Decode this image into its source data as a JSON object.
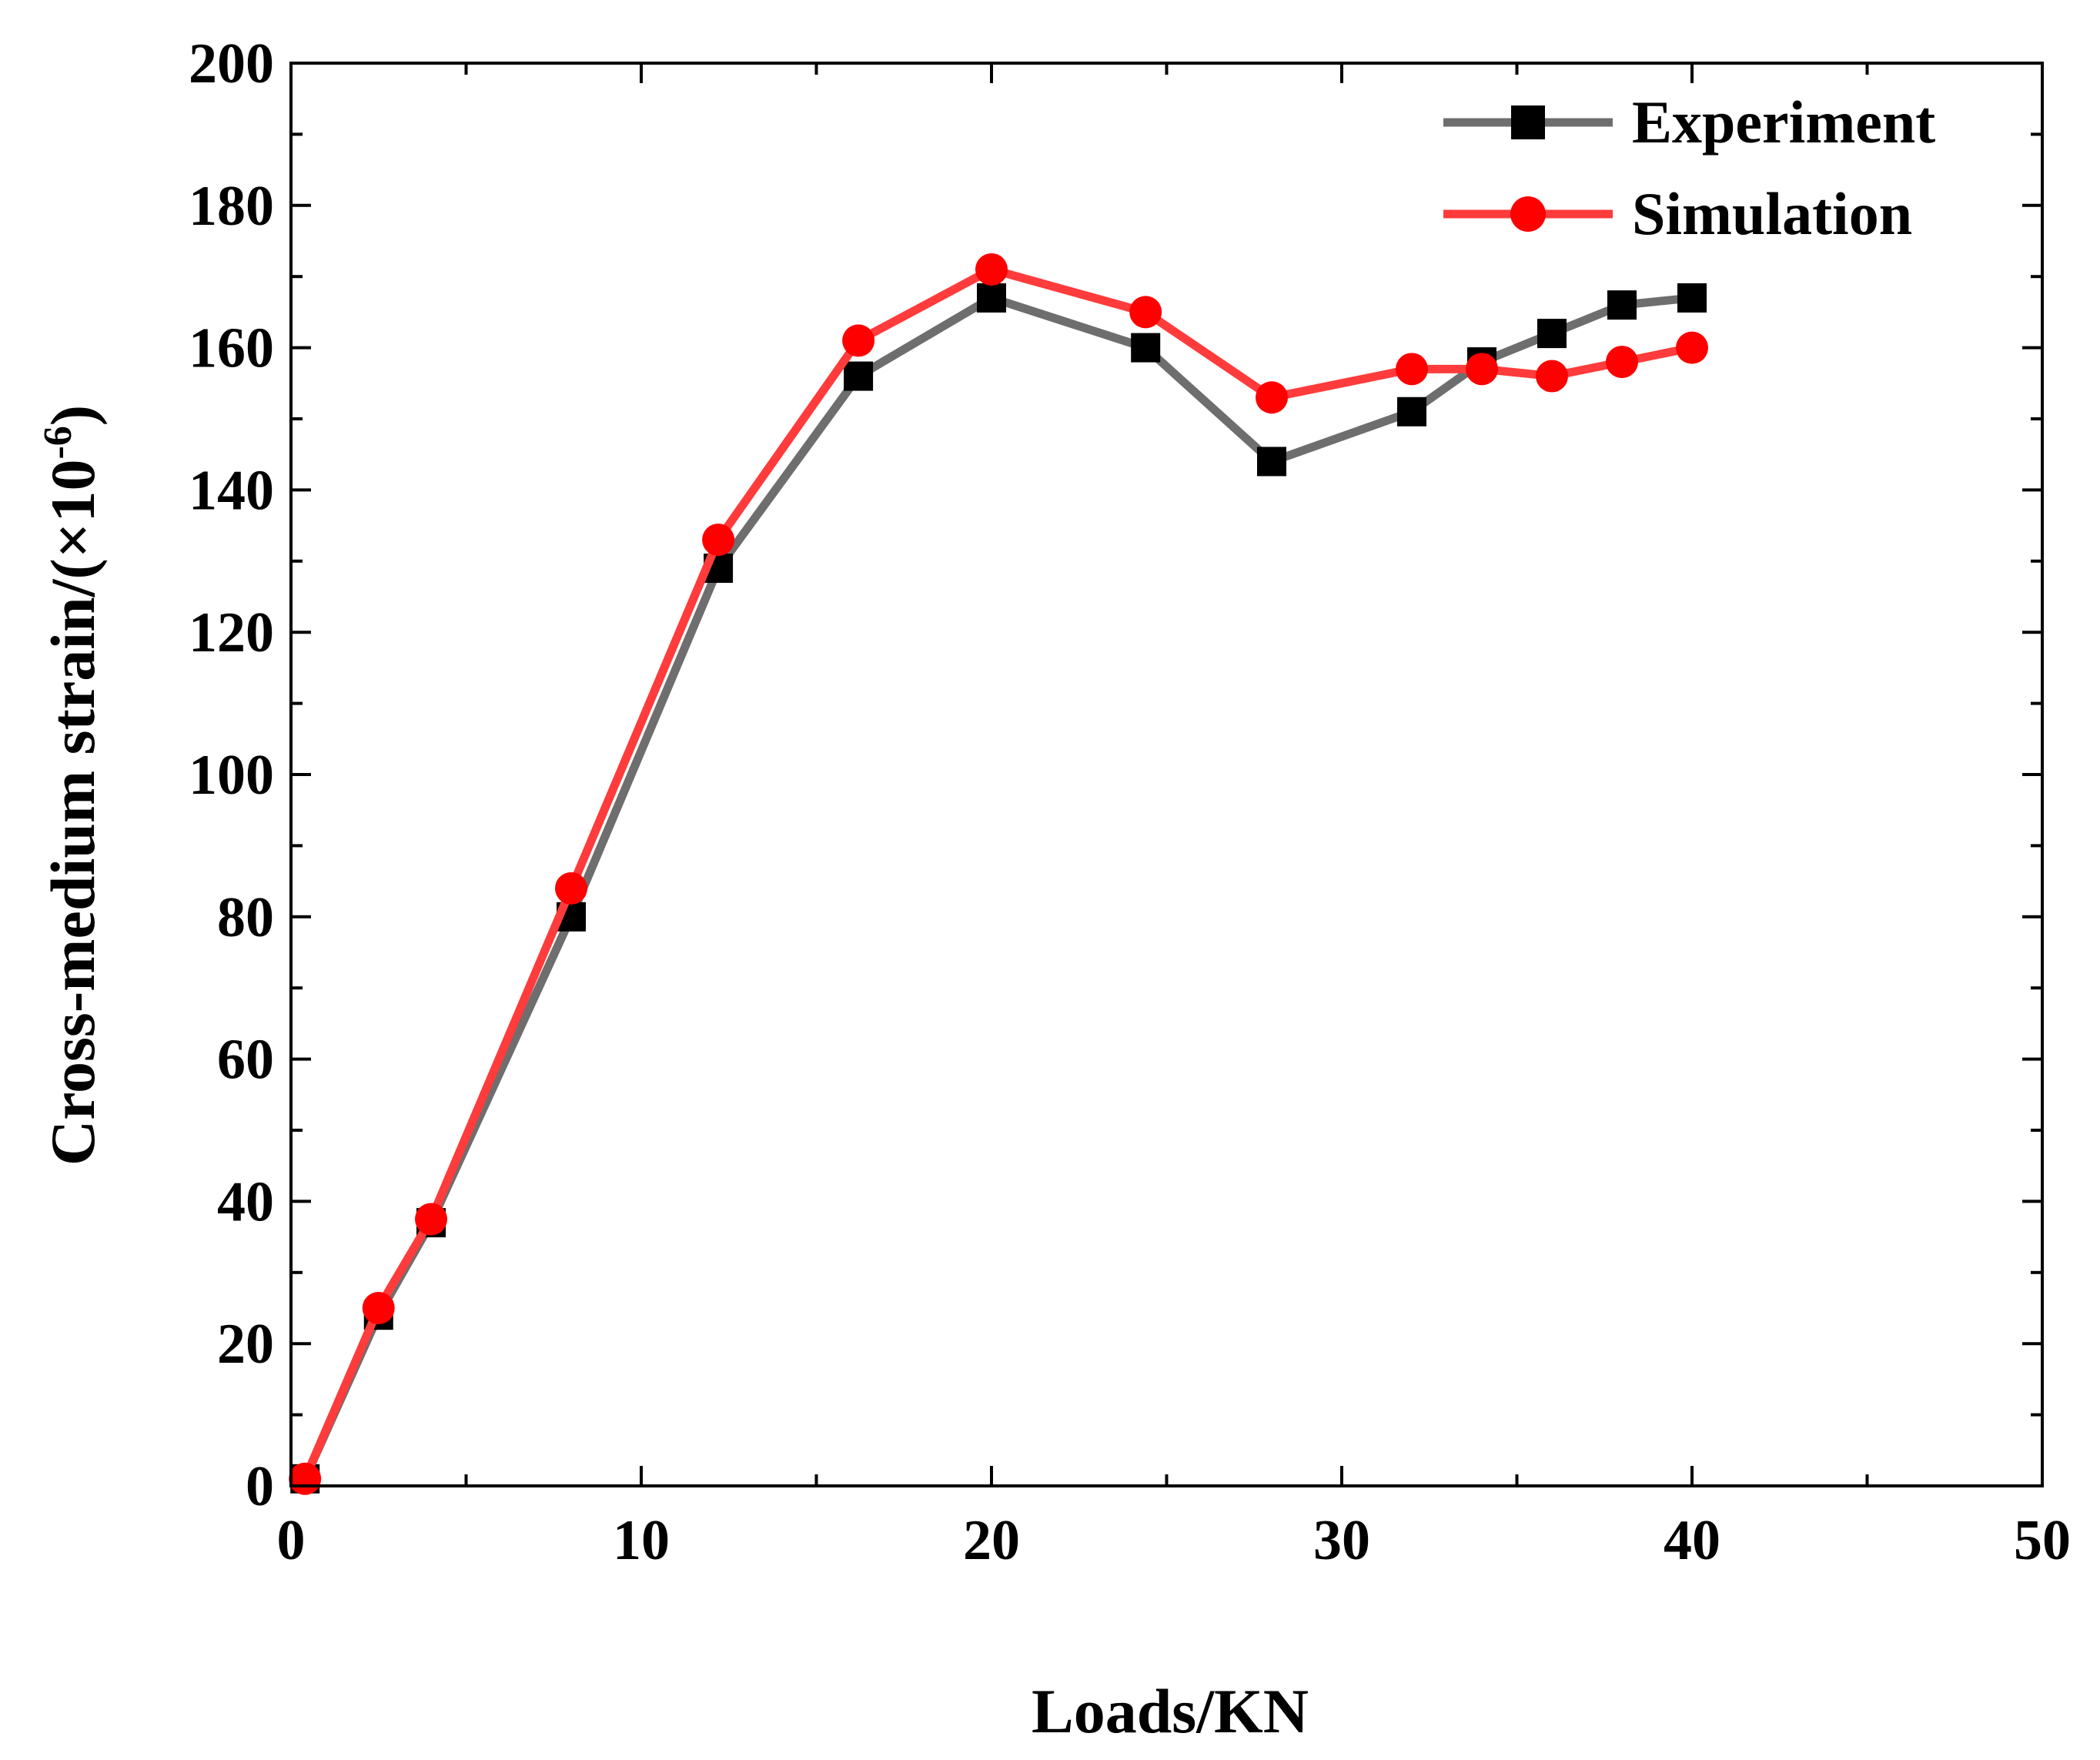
{
  "chart_data": {
    "type": "line",
    "xlabel": "Loads/KN",
    "ylabel_main": "Cross-medium strain/(×10",
    "ylabel_exp": "-6",
    "ylabel_close": ")",
    "xlim": [
      0,
      50
    ],
    "ylim": [
      0,
      200
    ],
    "xticks": [
      0,
      10,
      20,
      30,
      40,
      50
    ],
    "yticks": [
      0,
      20,
      40,
      60,
      80,
      100,
      120,
      140,
      160,
      180,
      200
    ],
    "xtick_labels": [
      "0",
      "10",
      "20",
      "30",
      "40",
      "50"
    ],
    "ytick_labels": [
      "0",
      "20",
      "40",
      "60",
      "80",
      "100",
      "120",
      "140",
      "160",
      "180",
      "200"
    ],
    "legend_position": "top-right",
    "series": [
      {
        "name": "Experiment",
        "marker": "square",
        "line_color": "#6e6e6e",
        "marker_color": "#000000",
        "x": [
          0.4,
          2.5,
          4.0,
          8.0,
          12.2,
          16.2,
          20.0,
          24.4,
          28.0,
          32.0,
          34.0,
          36.0,
          38.0,
          40.0
        ],
        "y": [
          1,
          24,
          37,
          80,
          129,
          156,
          167,
          160,
          144,
          151,
          158,
          162,
          166,
          167
        ]
      },
      {
        "name": "Simulation",
        "marker": "circle",
        "line_color": "#ff3b3b",
        "marker_color": "#ff0000",
        "x": [
          0.4,
          2.5,
          4.0,
          8.0,
          12.2,
          16.2,
          20.0,
          24.4,
          28.0,
          32.0,
          34.0,
          36.0,
          38.0,
          40.0
        ],
        "y": [
          1,
          25,
          37.5,
          84,
          133,
          161,
          171,
          165,
          153,
          157,
          157,
          156,
          158,
          160
        ]
      }
    ]
  }
}
